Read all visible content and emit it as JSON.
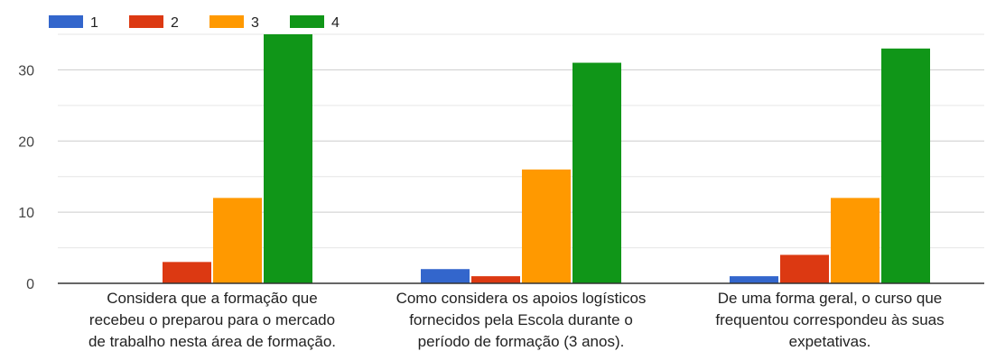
{
  "chart_data": {
    "type": "bar",
    "title": "",
    "xlabel": "",
    "ylabel": "",
    "categories": [
      [
        "Considera que a formação que",
        "recebeu o preparou para o mercado",
        "de trabalho nesta área de formação."
      ],
      [
        "Como considera os apoios logísticos",
        "fornecidos pela Escola durante o",
        "período de formação (3 anos)."
      ],
      [
        "De uma forma geral, o curso que",
        "frequentou correspondeu às suas",
        "expetativas."
      ]
    ],
    "series": [
      {
        "name": "1",
        "values": [
          0,
          2,
          1
        ],
        "color": "#3366cc"
      },
      {
        "name": "2",
        "values": [
          3,
          1,
          4
        ],
        "color": "#dc3912"
      },
      {
        "name": "3",
        "values": [
          12,
          16,
          12
        ],
        "color": "#ff9900"
      },
      {
        "name": "4",
        "values": [
          35,
          31,
          33
        ],
        "color": "#109618"
      }
    ],
    "ylim": [
      0,
      35
    ],
    "yticks": [
      0,
      10,
      20,
      30
    ],
    "grid": true,
    "legend_position": "top-left",
    "colors": {
      "gridline": "#cccccc",
      "minor_gridline": "#e6e6e6",
      "baseline": "#333333"
    }
  }
}
